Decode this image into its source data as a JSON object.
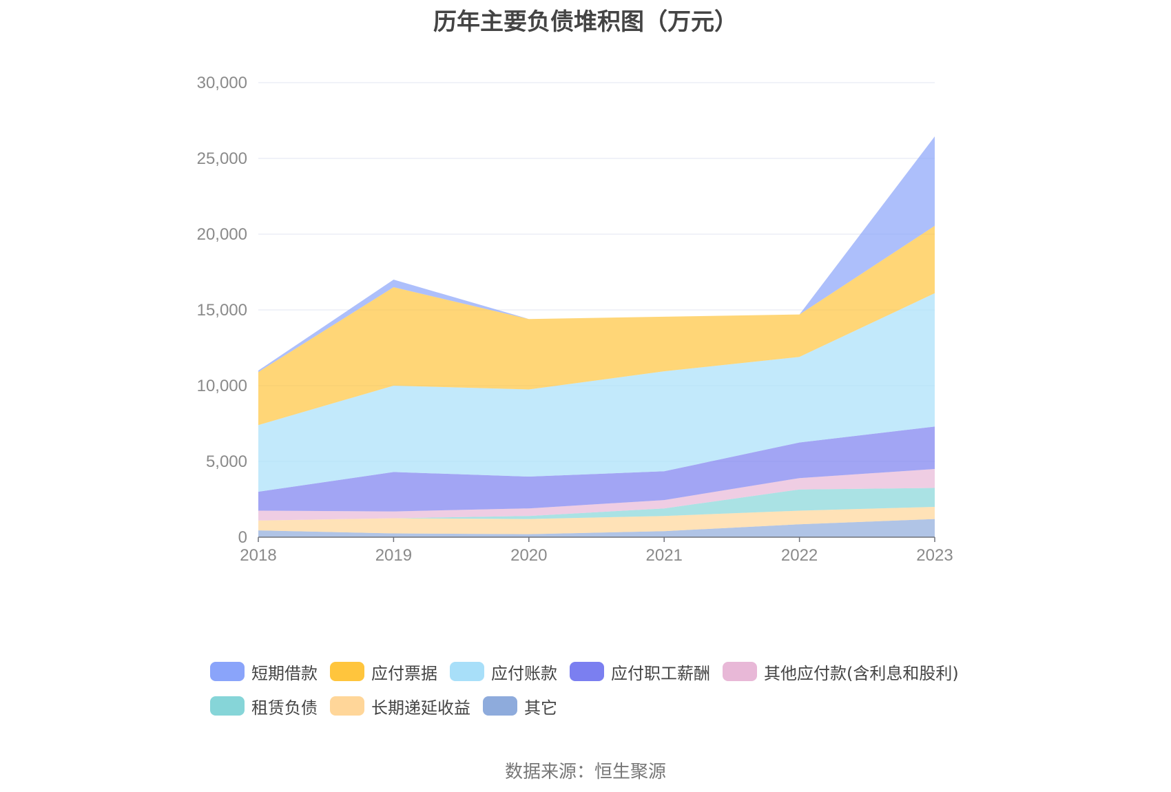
{
  "chart_data": {
    "type": "area",
    "stacked": true,
    "title": "历年主要负债堆积图（万元）",
    "x": [
      "2018",
      "2019",
      "2020",
      "2021",
      "2022",
      "2023"
    ],
    "ylim": [
      0,
      30000
    ],
    "yticks": [
      0,
      5000,
      10000,
      15000,
      20000,
      25000,
      30000
    ],
    "ytick_labels": [
      "0",
      "5,000",
      "10,000",
      "15,000",
      "20,000",
      "25,000",
      "30,000"
    ],
    "grid": true,
    "legend_position": "bottom",
    "series": [
      {
        "name": "其它",
        "color": "#8eabdc",
        "values": [
          450,
          250,
          200,
          400,
          850,
          1200
        ]
      },
      {
        "name": "长期递延收益",
        "color": "#ffd699",
        "values": [
          650,
          1000,
          1000,
          1000,
          900,
          800
        ]
      },
      {
        "name": "租赁负债",
        "color": "#86d5d8",
        "values": [
          0,
          0,
          200,
          500,
          1400,
          1250
        ]
      },
      {
        "name": "其他应付款(含利息和股利)",
        "color": "#e8b8d7",
        "values": [
          650,
          450,
          500,
          550,
          750,
          1250
        ]
      },
      {
        "name": "应付职工薪酬",
        "color": "#7b7ff0",
        "values": [
          1250,
          2600,
          2100,
          1900,
          2350,
          2800
        ]
      },
      {
        "name": "应付账款",
        "color": "#a8dff9",
        "values": [
          4400,
          5700,
          5750,
          6600,
          5650,
          8800
        ]
      },
      {
        "name": "应付票据",
        "color": "#ffc53d",
        "values": [
          3500,
          6500,
          4650,
          3600,
          2800,
          4450
        ]
      },
      {
        "name": "短期借款",
        "color": "#8aa4fa",
        "values": [
          100,
          500,
          0,
          0,
          0,
          5900
        ]
      }
    ],
    "legend_order": [
      "短期借款",
      "应付票据",
      "应付账款",
      "应付职工薪酬",
      "其他应付款(含利息和股利)",
      "租赁负债",
      "长期递延收益",
      "其它"
    ]
  },
  "source_text": "数据来源：恒生聚源"
}
